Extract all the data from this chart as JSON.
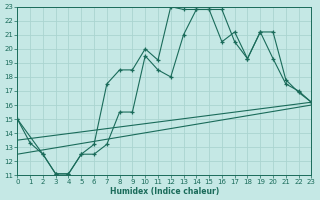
{
  "xlabel": "Humidex (Indice chaleur)",
  "bg_color": "#c5e8e5",
  "grid_color": "#b0d8d5",
  "line_color": "#1a6b5a",
  "xlim": [
    0,
    23
  ],
  "ylim": [
    11,
    23
  ],
  "xtick_vals": [
    0,
    1,
    2,
    3,
    4,
    5,
    6,
    7,
    8,
    9,
    10,
    11,
    12,
    13,
    14,
    15,
    16,
    17,
    18,
    19,
    20,
    21,
    22,
    23
  ],
  "ytick_vals": [
    11,
    12,
    13,
    14,
    15,
    16,
    17,
    18,
    19,
    20,
    21,
    22,
    23
  ],
  "line1_x": [
    0,
    1,
    2,
    3,
    4,
    5,
    6,
    7,
    8,
    9,
    10,
    11,
    12,
    13,
    14,
    15,
    16,
    17,
    18,
    19,
    20,
    21,
    22,
    23
  ],
  "line1_y": [
    15,
    13.3,
    12.5,
    11.1,
    11.1,
    12.5,
    13.2,
    17.5,
    18.5,
    18.5,
    20.0,
    19.2,
    23.0,
    22.8,
    22.8,
    22.8,
    20.5,
    21.2,
    19.3,
    21.2,
    21.2,
    17.8,
    16.9,
    16.2
  ],
  "line2_x": [
    0,
    2,
    3,
    4,
    5,
    6,
    7,
    8,
    9,
    10,
    11,
    12,
    13,
    14,
    15,
    16,
    17,
    18,
    19,
    20,
    21,
    22,
    23
  ],
  "line2_y": [
    15,
    12.5,
    11.1,
    11.1,
    12.5,
    12.5,
    13.2,
    15.5,
    15.5,
    19.5,
    18.5,
    18.0,
    21.0,
    22.8,
    22.8,
    22.8,
    20.5,
    19.3,
    21.2,
    19.3,
    17.5,
    17.0,
    16.2
  ],
  "line3_x": [
    0,
    23
  ],
  "line3_y": [
    12.5,
    16.0
  ],
  "line4_x": [
    0,
    23
  ],
  "line4_y": [
    13.5,
    16.2
  ]
}
